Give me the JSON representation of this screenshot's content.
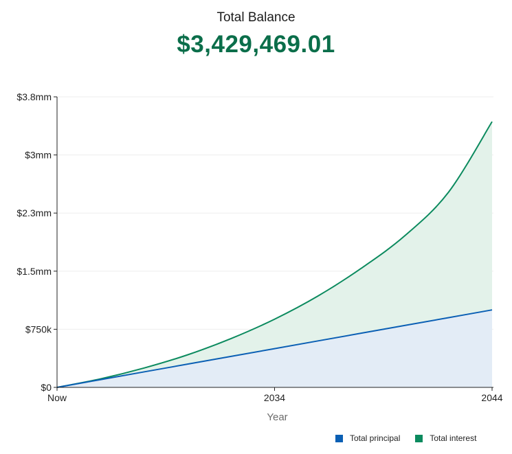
{
  "header": {
    "title": "Total Balance",
    "balance": "$3,429,469.01"
  },
  "colors": {
    "principal_line": "#0a5fb4",
    "principal_fill": "#e3ecf6",
    "interest_line": "#0b8a5e",
    "interest_fill": "#e3f2ea",
    "balance_text": "#0b6e4a",
    "axis": "#222222",
    "grid": "#ededed",
    "xlabel": "#6b6b6b"
  },
  "chart_data": {
    "type": "area",
    "title": "",
    "xlabel": "Year",
    "ylabel": "",
    "x": [
      0,
      2,
      4,
      6,
      8,
      10,
      12,
      14,
      16,
      18,
      20
    ],
    "xlim": [
      0,
      20
    ],
    "xticks": [
      {
        "value": 0,
        "label": "Now"
      },
      {
        "value": 10,
        "label": "2034"
      },
      {
        "value": 20,
        "label": "2044"
      }
    ],
    "ylim": [
      0,
      3750000
    ],
    "yticks": [
      {
        "value": 0,
        "label": "$0"
      },
      {
        "value": 750000,
        "label": "$750k"
      },
      {
        "value": 1500000,
        "label": "$1.5mm"
      },
      {
        "value": 2250000,
        "label": "$2.3mm"
      },
      {
        "value": 3000000,
        "label": "$3mm"
      },
      {
        "value": 3750000,
        "label": "$3.8mm"
      }
    ],
    "grid": true,
    "legend_position": "bottom-right",
    "series": [
      {
        "name": "Total principal",
        "values": [
          0,
          100000,
          200000,
          300000,
          400000,
          500000,
          600000,
          700000,
          800000,
          900000,
          1000000
        ]
      },
      {
        "name": "Total interest",
        "values": [
          0,
          110000,
          250000,
          420000,
          630000,
          880000,
          1180000,
          1540000,
          1960000,
          2520000,
          3429469.01
        ]
      }
    ]
  }
}
